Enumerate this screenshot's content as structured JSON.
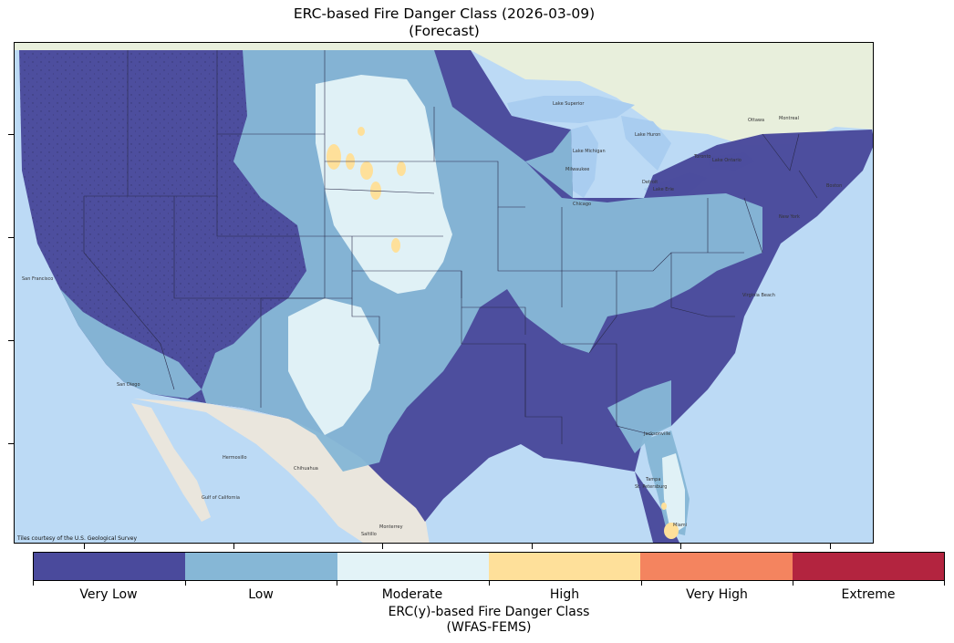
{
  "figure": {
    "title_line1": "ERC-based Fire Danger Class (2026-03-09)",
    "title_line2": "(Forecast)"
  },
  "map": {
    "attribution": "Tiles courtesy of the U.S. Geological Survey",
    "colors": {
      "ocean": "#bcdaf5",
      "land_us": "#e9ecea",
      "canada": "#e8efdc",
      "mexico": "#eae6dd",
      "lakes": "#a9cdf0",
      "boundary": "#2a2a4a"
    },
    "place_labels": [
      "Lake Superior",
      "Lake Michigan",
      "Lake Huron",
      "Lake Erie",
      "Lake Ontario",
      "Ottawa",
      "Montreal",
      "Toronto",
      "Milwaukee",
      "Chicago",
      "Detroit",
      "Boston",
      "New York",
      "Virginia Beach",
      "Jacksonville",
      "Tampa",
      "St. Petersburg",
      "Miami",
      "Hermosillo",
      "Chihuahua",
      "Monterrey",
      "Saltillo",
      "Gulf of California",
      "San Francisco",
      "San Diego"
    ]
  },
  "chart_data": {
    "type": "heatmap",
    "title": "ERC-based Fire Danger Class (2026-03-09)\n(Forecast)",
    "date": "2026-03-09",
    "mode": "Forecast",
    "colorbar": {
      "label_line1": "ERC(y)-based Fire Danger Class",
      "label_line2": "(WFAS-FEMS)",
      "classes": [
        {
          "name": "Very Low",
          "color": "#4a4a9c"
        },
        {
          "name": "Low",
          "color": "#86b7d6"
        },
        {
          "name": "Moderate",
          "color": "#e3f3f7"
        },
        {
          "name": "High",
          "color": "#fee09a"
        },
        {
          "name": "Very High",
          "color": "#f4845f"
        },
        {
          "name": "Extreme",
          "color": "#b3243f"
        }
      ]
    },
    "regions": [
      {
        "area": "West Coast, Great Basin, Rockies, Northern Rockies",
        "class": "Very Low"
      },
      {
        "area": "Great Lakes, Northeast",
        "class": "Very Low"
      },
      {
        "area": "Southeast, lower Mississippi Valley, Texas",
        "class": "Very Low"
      },
      {
        "area": "Northern Plains fringe, Upper Midwest, Mid-Atlantic, Southwest",
        "class": "Low"
      },
      {
        "area": "Central Plains, western Texas, south Florida",
        "class": "Moderate"
      },
      {
        "area": "Scattered spots in Nebraska/South Dakota and south Florida",
        "class": "High"
      }
    ]
  }
}
